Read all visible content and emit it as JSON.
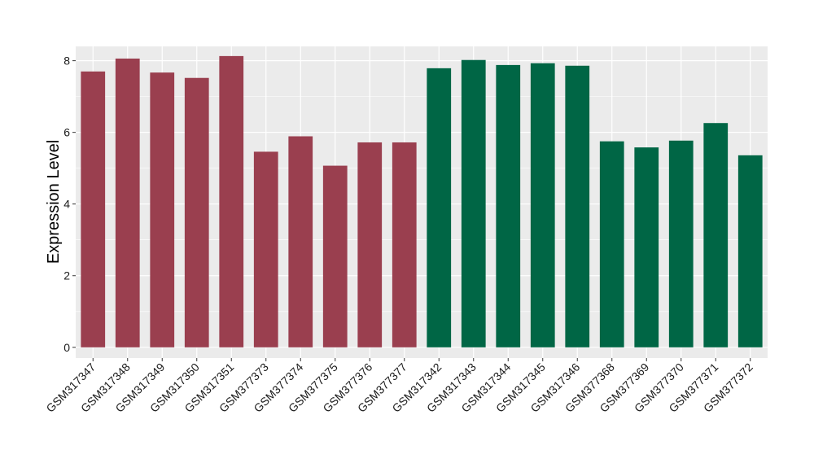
{
  "chart_data": {
    "type": "bar",
    "title": "",
    "xlabel": "",
    "ylabel": "Expression Level",
    "ylim": [
      -0.3,
      8.4
    ],
    "yticks": [
      0,
      2,
      4,
      6,
      8
    ],
    "grid": true,
    "panel_background": "#EBEBEB",
    "grid_color": "#FFFFFF",
    "categories": [
      "GSM317347",
      "GSM317348",
      "GSM317349",
      "GSM317350",
      "GSM317351",
      "GSM377373",
      "GSM377374",
      "GSM377375",
      "GSM377376",
      "GSM377377",
      "GSM317342",
      "GSM317343",
      "GSM317344",
      "GSM317345",
      "GSM317346",
      "GSM377368",
      "GSM377369",
      "GSM377370",
      "GSM377371",
      "GSM377372"
    ],
    "values": [
      7.7,
      8.06,
      7.67,
      7.52,
      8.13,
      5.46,
      5.89,
      5.07,
      5.72,
      5.72,
      7.79,
      8.02,
      7.88,
      7.93,
      7.86,
      5.75,
      5.58,
      5.77,
      6.26,
      5.36
    ],
    "bar_colors": [
      "#9A3F4F",
      "#9A3F4F",
      "#9A3F4F",
      "#9A3F4F",
      "#9A3F4F",
      "#9A3F4F",
      "#9A3F4F",
      "#9A3F4F",
      "#9A3F4F",
      "#9A3F4F",
      "#006645",
      "#006645",
      "#006645",
      "#006645",
      "#006645",
      "#006645",
      "#006645",
      "#006645",
      "#006645",
      "#006645"
    ]
  }
}
